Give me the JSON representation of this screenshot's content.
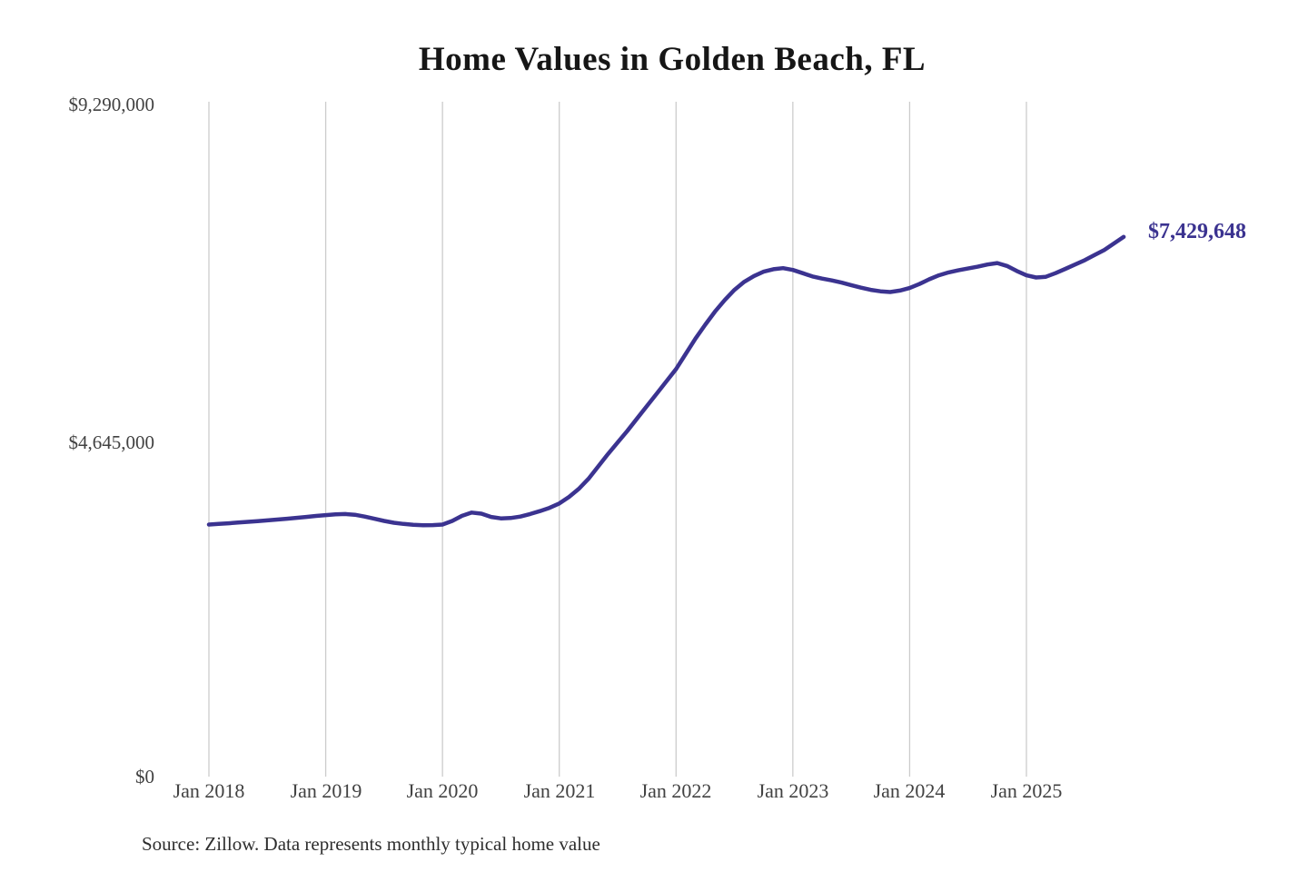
{
  "title": "Home Values in Golden Beach, FL",
  "source_note": "Source: Zillow. Data represents monthly typical home value",
  "colors": {
    "line": "#3b3390",
    "gridline": "#cccccc",
    "title_text": "#161616",
    "tick_text": "#414141",
    "final_label_text": "#3b3390"
  },
  "chart_data": {
    "type": "line",
    "title": "Home Values in Golden Beach, FL",
    "xlabel": "",
    "ylabel": "",
    "ylim": [
      0,
      9290000
    ],
    "grid": "vertical-only",
    "legend": "none",
    "y_ticks": [
      0,
      4645000,
      9290000
    ],
    "y_tick_labels": [
      "$0",
      "$4,645,000",
      "$9,290,000"
    ],
    "x_tick_labels": [
      "Jan 2018",
      "Jan 2019",
      "Jan 2020",
      "Jan 2021",
      "Jan 2022",
      "Jan 2023",
      "Jan 2024",
      "Jan 2025"
    ],
    "final_value": 7429648,
    "final_value_label": "$7,429,648",
    "series": [
      {
        "name": "Monthly typical home value",
        "x_start_month": "2018-01",
        "x_end_month": "2025-11",
        "values": [
          3470000,
          3478000,
          3487000,
          3497000,
          3507000,
          3517000,
          3527000,
          3538000,
          3550000,
          3562000,
          3575000,
          3588000,
          3600000,
          3610000,
          3615000,
          3605000,
          3580000,
          3550000,
          3520000,
          3495000,
          3478000,
          3466000,
          3460000,
          3462000,
          3470000,
          3520000,
          3590000,
          3635000,
          3620000,
          3575000,
          3555000,
          3560000,
          3580000,
          3615000,
          3655000,
          3700000,
          3760000,
          3850000,
          3960000,
          4100000,
          4270000,
          4440000,
          4600000,
          4760000,
          4930000,
          5100000,
          5270000,
          5440000,
          5610000,
          5820000,
          6030000,
          6220000,
          6400000,
          6560000,
          6700000,
          6810000,
          6890000,
          6950000,
          6985000,
          7000000,
          6975000,
          6930000,
          6885000,
          6855000,
          6830000,
          6800000,
          6765000,
          6730000,
          6700000,
          6680000,
          6670000,
          6690000,
          6725000,
          6780000,
          6845000,
          6900000,
          6940000,
          6970000,
          6995000,
          7020000,
          7050000,
          7070000,
          7030000,
          6960000,
          6900000,
          6870000,
          6880000,
          6930000,
          6990000,
          7050000,
          7110000,
          7180000,
          7250000,
          7340000,
          7429648
        ]
      }
    ]
  },
  "layout_note": ""
}
